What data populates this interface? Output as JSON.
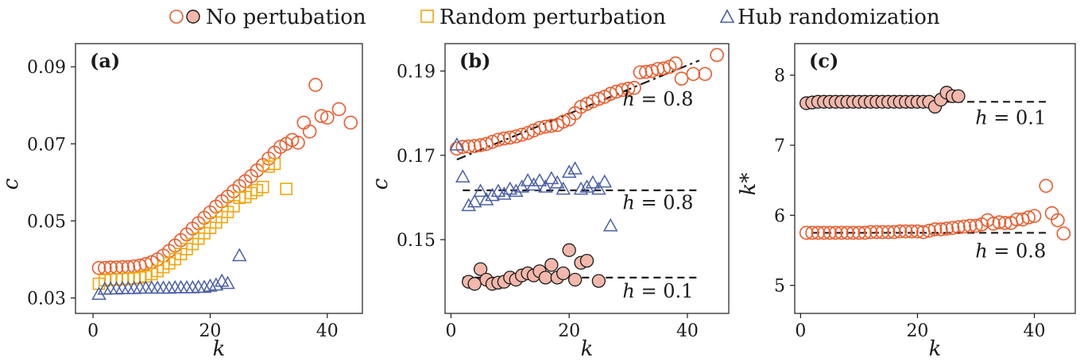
{
  "legend": {
    "no_perturbation": "No pertubation",
    "random_perturbation": "Random perturbation",
    "hub_randomization": "Hub randomization"
  },
  "colors": {
    "orange": "#ea5b2c",
    "orange_fill": "#f2b8ab",
    "gold": "#f0a60c",
    "blue": "#4a5fa8",
    "black": "#1a1a1a"
  },
  "chart_data": [
    {
      "panel": "(a)",
      "type": "scatter",
      "xlabel": "k",
      "ylabel": "c",
      "xlim": [
        -3,
        46
      ],
      "ylim": [
        0.026,
        0.096
      ],
      "xticks": [
        0,
        20,
        40
      ],
      "yticks": [
        0.03,
        0.05,
        0.07,
        0.09
      ],
      "yticklabels": [
        "0.03",
        "0.05",
        "0.07",
        "0.09"
      ],
      "series": [
        {
          "name": "No pertubation",
          "marker": "circle",
          "color": "#ea5b2c",
          "fill": "none",
          "x": [
            1,
            2,
            3,
            4,
            5,
            6,
            7,
            8,
            9,
            10,
            11,
            12,
            13,
            14,
            15,
            16,
            17,
            18,
            19,
            20,
            21,
            22,
            23,
            24,
            25,
            26,
            27,
            28,
            29,
            30,
            31,
            32,
            33,
            34,
            35,
            36,
            37,
            38,
            39,
            40,
            42,
            44
          ],
          "y": [
            0.0378,
            0.0378,
            0.0379,
            0.0379,
            0.038,
            0.038,
            0.0382,
            0.0384,
            0.0388,
            0.0393,
            0.04,
            0.041,
            0.0422,
            0.0436,
            0.045,
            0.0465,
            0.048,
            0.0494,
            0.0508,
            0.0522,
            0.0537,
            0.0551,
            0.0563,
            0.0577,
            0.059,
            0.0603,
            0.0616,
            0.0631,
            0.0645,
            0.0662,
            0.0677,
            0.0692,
            0.07,
            0.071,
            0.0703,
            0.0755,
            0.0732,
            0.0853,
            0.0772,
            0.0768,
            0.079,
            0.0755
          ]
        },
        {
          "name": "Random perturbation",
          "marker": "square",
          "color": "#f0a60c",
          "fill": "none",
          "x": [
            1,
            2,
            3,
            4,
            5,
            6,
            7,
            8,
            9,
            10,
            11,
            12,
            13,
            14,
            15,
            16,
            17,
            18,
            19,
            20,
            21,
            22,
            23,
            24,
            25,
            26,
            27,
            28,
            29,
            30,
            31,
            33
          ],
          "y": [
            0.0337,
            0.0346,
            0.0348,
            0.0348,
            0.0349,
            0.035,
            0.0351,
            0.0353,
            0.0356,
            0.0362,
            0.037,
            0.038,
            0.039,
            0.0401,
            0.0414,
            0.0427,
            0.044,
            0.0454,
            0.0468,
            0.0482,
            0.0496,
            0.051,
            0.0523,
            0.0538,
            0.056,
            0.0562,
            0.0572,
            0.058,
            0.0588,
            0.0641,
            0.0648,
            0.0583
          ]
        },
        {
          "name": "Hub randomization",
          "marker": "triangle",
          "color": "#4a5fa8",
          "fill": "none",
          "x": [
            1,
            2,
            3,
            4,
            5,
            6,
            7,
            8,
            9,
            10,
            11,
            12,
            13,
            14,
            15,
            16,
            17,
            18,
            19,
            20,
            21,
            22,
            23,
            25
          ],
          "y": [
            0.031,
            0.0323,
            0.0324,
            0.0324,
            0.0325,
            0.0325,
            0.0325,
            0.0326,
            0.0326,
            0.0326,
            0.0326,
            0.0326,
            0.0326,
            0.0327,
            0.0327,
            0.0327,
            0.0327,
            0.0328,
            0.0328,
            0.0331,
            0.0334,
            0.0344,
            0.0338,
            0.041
          ]
        }
      ],
      "annotations": []
    },
    {
      "panel": "(b)",
      "type": "scatter",
      "xlabel": "k",
      "ylabel": "c",
      "xlim": [
        -1,
        47
      ],
      "ylim": [
        0.1325,
        0.1965
      ],
      "xticks": [
        0,
        20,
        40
      ],
      "yticks": [
        0.15,
        0.17,
        0.19
      ],
      "yticklabels": [
        "0.15",
        "0.17",
        "0.19"
      ],
      "series": [
        {
          "name": "No pertubation h=0.8",
          "marker": "circle",
          "color": "#ea5b2c",
          "fill": "none",
          "x": [
            1,
            2,
            3,
            4,
            5,
            6,
            7,
            8,
            9,
            10,
            11,
            12,
            13,
            14,
            15,
            16,
            17,
            18,
            19,
            20,
            21,
            22,
            23,
            24,
            25,
            26,
            27,
            28,
            29,
            30,
            31,
            32,
            33,
            34,
            35,
            36,
            37,
            38,
            39,
            41,
            43,
            45
          ],
          "y": [
            0.1716,
            0.172,
            0.1721,
            0.1722,
            0.1724,
            0.1727,
            0.1732,
            0.1737,
            0.174,
            0.1742,
            0.1745,
            0.1749,
            0.1753,
            0.1759,
            0.1765,
            0.1768,
            0.177,
            0.1772,
            0.178,
            0.1785,
            0.18,
            0.1815,
            0.1822,
            0.1828,
            0.1834,
            0.1839,
            0.1846,
            0.1851,
            0.1855,
            0.1858,
            0.186,
            0.1897,
            0.1898,
            0.19,
            0.1905,
            0.1906,
            0.191,
            0.1918,
            0.1882,
            0.1893,
            0.1893,
            0.1938
          ]
        },
        {
          "name": "Hub randomization h=0.8",
          "marker": "triangle",
          "color": "#4a5fa8",
          "fill": "none",
          "x": [
            1,
            2,
            3,
            4,
            5,
            6,
            7,
            8,
            9,
            10,
            11,
            12,
            13,
            14,
            15,
            16,
            17,
            18,
            19,
            20,
            21,
            22,
            23,
            24,
            25,
            26,
            27
          ],
          "y": [
            0.1725,
            0.1649,
            0.1581,
            0.159,
            0.1615,
            0.1595,
            0.1605,
            0.1615,
            0.1608,
            0.162,
            0.1615,
            0.1625,
            0.164,
            0.163,
            0.164,
            0.1625,
            0.1645,
            0.1635,
            0.162,
            0.166,
            0.1668,
            0.162,
            0.1625,
            0.1635,
            0.162,
            0.1637,
            0.1533
          ]
        },
        {
          "name": "No pertubation h=0.1",
          "marker": "circle",
          "color": "#1a1a1a",
          "fill": "#f2b8ab",
          "x": [
            3,
            4,
            5,
            6,
            7,
            8,
            9,
            10,
            11,
            12,
            13,
            14,
            15,
            16,
            17,
            18,
            19,
            20,
            21,
            22,
            23,
            25
          ],
          "y": [
            0.14,
            0.1395,
            0.143,
            0.1405,
            0.1395,
            0.1398,
            0.14,
            0.141,
            0.1405,
            0.1415,
            0.142,
            0.1415,
            0.1425,
            0.141,
            0.144,
            0.141,
            0.142,
            0.1475,
            0.1405,
            0.1445,
            0.145,
            0.1402
          ]
        }
      ],
      "lines": [
        {
          "style": "dashdot",
          "color": "#1a1a1a",
          "x": [
            1,
            42
          ],
          "y": [
            0.169,
            0.1925
          ]
        },
        {
          "style": "dashed",
          "color": "#1a1a1a",
          "x": [
            2,
            42
          ],
          "y": [
            0.1617,
            0.1617
          ]
        },
        {
          "style": "dashed",
          "color": "#1a1a1a",
          "x": [
            2,
            42
          ],
          "y": [
            0.141,
            0.141
          ]
        }
      ],
      "annotations": [
        {
          "text": "h = 0.8",
          "x": 41,
          "y": 0.1818
        },
        {
          "text": "h = 0.8",
          "x": 41,
          "y": 0.1573
        },
        {
          "text": "h = 0.1",
          "x": 41,
          "y": 0.1363
        }
      ]
    },
    {
      "panel": "(c)",
      "type": "scatter",
      "xlabel": "k",
      "ylabel": "k*",
      "xlim": [
        -1,
        47
      ],
      "ylim": [
        4.6,
        8.45
      ],
      "xticks": [
        0,
        20,
        40
      ],
      "yticks": [
        5,
        6,
        7,
        8
      ],
      "yticklabels": [
        "5",
        "6",
        "7",
        "8"
      ],
      "series": [
        {
          "name": "No pertubation h=0.1",
          "marker": "circle",
          "color": "#1a1a1a",
          "fill": "#f2b8ab",
          "x": [
            1,
            2,
            3,
            4,
            5,
            6,
            7,
            8,
            9,
            10,
            11,
            12,
            13,
            14,
            15,
            16,
            17,
            18,
            19,
            20,
            21,
            22,
            23,
            24,
            25,
            26,
            27
          ],
          "y": [
            7.6,
            7.61,
            7.62,
            7.62,
            7.62,
            7.62,
            7.62,
            7.62,
            7.62,
            7.62,
            7.62,
            7.62,
            7.62,
            7.62,
            7.62,
            7.62,
            7.62,
            7.62,
            7.62,
            7.62,
            7.62,
            7.62,
            7.55,
            7.65,
            7.75,
            7.7,
            7.7
          ]
        },
        {
          "name": "No pertubation h=0.8",
          "marker": "circle",
          "color": "#ea5b2c",
          "fill": "none",
          "x": [
            1,
            2,
            3,
            4,
            5,
            6,
            7,
            8,
            9,
            10,
            11,
            12,
            13,
            14,
            15,
            16,
            17,
            18,
            19,
            20,
            21,
            22,
            23,
            24,
            25,
            26,
            27,
            28,
            29,
            30,
            31,
            32,
            33,
            34,
            35,
            36,
            37,
            38,
            39,
            40,
            42,
            43,
            44,
            45
          ],
          "y": [
            5.75,
            5.75,
            5.75,
            5.75,
            5.75,
            5.75,
            5.75,
            5.75,
            5.75,
            5.75,
            5.75,
            5.76,
            5.76,
            5.76,
            5.76,
            5.76,
            5.77,
            5.77,
            5.77,
            5.77,
            5.76,
            5.78,
            5.8,
            5.8,
            5.81,
            5.82,
            5.83,
            5.84,
            5.85,
            5.85,
            5.87,
            5.93,
            5.88,
            5.9,
            5.89,
            5.89,
            5.94,
            5.94,
            5.97,
            5.99,
            6.42,
            6.03,
            5.93,
            5.74
          ]
        }
      ],
      "lines": [
        {
          "style": "dashed",
          "color": "#1a1a1a",
          "x": [
            2,
            42
          ],
          "y": [
            7.62,
            7.62
          ]
        },
        {
          "style": "dashed",
          "color": "#1a1a1a",
          "x": [
            2,
            42
          ],
          "y": [
            5.75,
            5.75
          ]
        }
      ],
      "annotations": [
        {
          "text": "h = 0.1",
          "x": 42,
          "y": 7.3
        },
        {
          "text": "h = 0.8",
          "x": 42,
          "y": 5.4
        }
      ]
    }
  ]
}
